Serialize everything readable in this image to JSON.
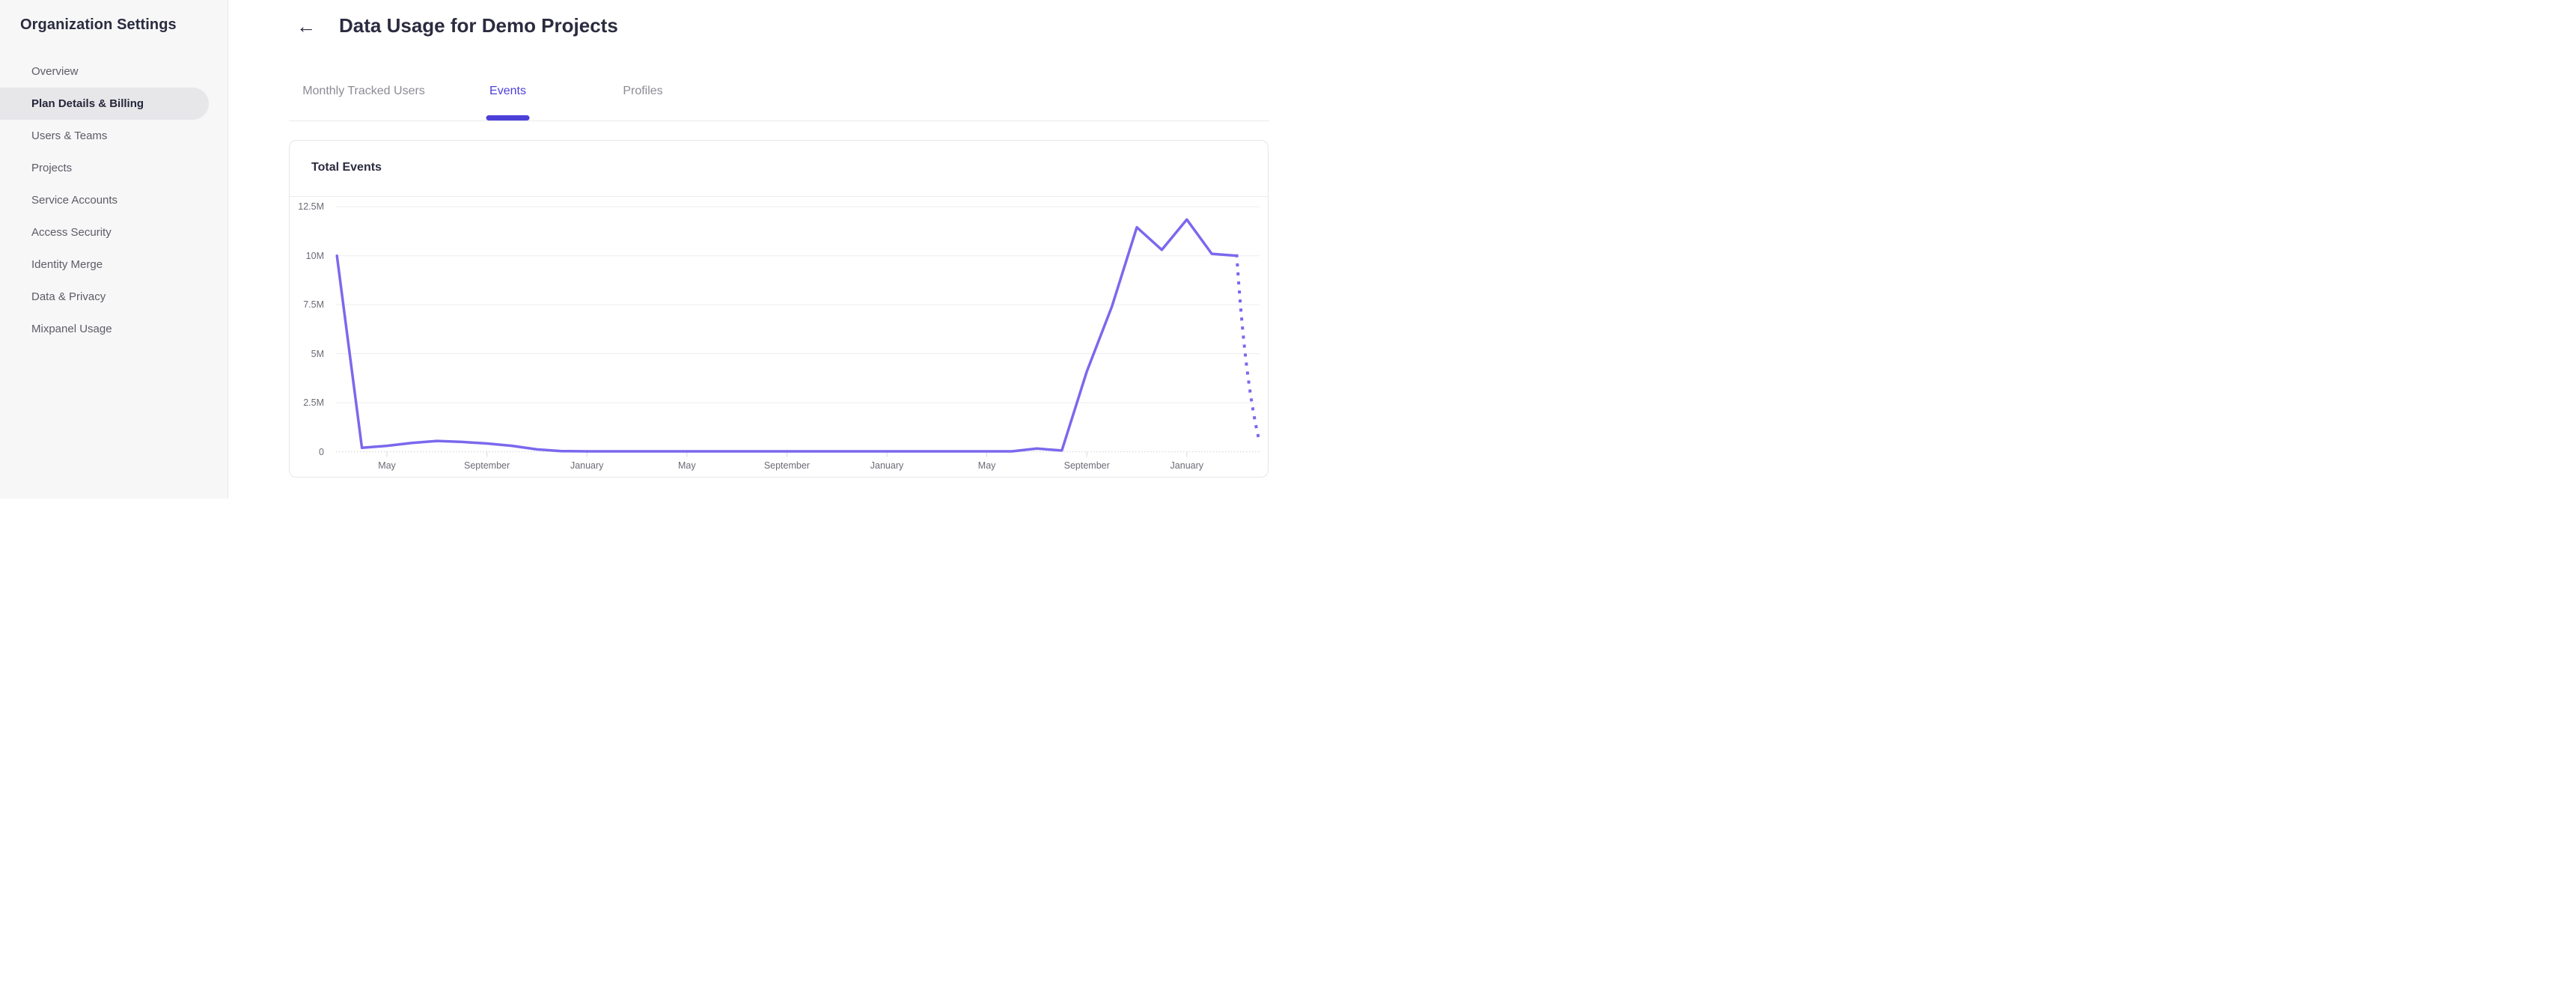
{
  "sidebar": {
    "title": "Organization Settings",
    "items": [
      {
        "label": "Overview",
        "active": false
      },
      {
        "label": "Plan Details & Billing",
        "active": true
      },
      {
        "label": "Users & Teams",
        "active": false
      },
      {
        "label": "Projects",
        "active": false
      },
      {
        "label": "Service Accounts",
        "active": false
      },
      {
        "label": "Access Security",
        "active": false
      },
      {
        "label": "Identity Merge",
        "active": false
      },
      {
        "label": "Data & Privacy",
        "active": false
      },
      {
        "label": "Mixpanel Usage",
        "active": false
      }
    ]
  },
  "header": {
    "back_icon": "←",
    "title": "Data Usage for Demo Projects"
  },
  "tabs": [
    {
      "label": "Monthly Tracked Users",
      "active": false
    },
    {
      "label": "Events",
      "active": true
    },
    {
      "label": "Profiles",
      "active": false
    }
  ],
  "card": {
    "title": "Total Events"
  },
  "chart_data": {
    "type": "line",
    "title": "Total Events",
    "unit": "events per month (millions)",
    "grid": "horizontal",
    "legend": "none",
    "ylim_millions": [
      0,
      12.5
    ],
    "y_tick_labels": [
      "12.5M",
      "10M",
      "7.5M",
      "5M",
      "2.5M",
      "0"
    ],
    "y_tick_values_millions": [
      12.5,
      10,
      7.5,
      5,
      2.5,
      0
    ],
    "x_tick_labels": [
      "May",
      "September",
      "January",
      "May",
      "September",
      "January",
      "May",
      "September",
      "January"
    ],
    "months_between_x_ticks": 4,
    "series_starts_months_before_first_tick": 2,
    "series": [
      {
        "name": "Total Events",
        "color": "#7b68ee",
        "style": "solid",
        "values_millions": [
          10,
          0.2,
          0.3,
          0.45,
          0.55,
          0.5,
          0.42,
          0.3,
          0.12,
          0.03,
          0.02,
          0.02,
          0.02,
          0.02,
          0.02,
          0.02,
          0.02,
          0.02,
          0.02,
          0.02,
          0.02,
          0.02,
          0.02,
          0.02,
          0.02,
          0.02,
          0.02,
          0.02,
          0.16,
          0.06,
          4.1,
          7.4,
          11.45,
          10.3,
          11.85,
          10.1,
          10.0
        ]
      }
    ],
    "projection": {
      "style": "dotted",
      "from_last_solid_point": true,
      "months_after_last_point": 1,
      "end_value_millions": 0.45
    }
  },
  "colors": {
    "accent": "#4c40d9",
    "line": "#7b68ee",
    "sidebar_bg": "#f7f7f8",
    "active_item_bg": "#e7e7ea",
    "text_dark": "#2b2b40",
    "text_muted": "#5c5c66",
    "tab_inactive": "#8b8b95",
    "gridline": "#ededf0",
    "zero_line": "#d9d9de",
    "axis_text": "#6b6b76",
    "card_border": "#e6e6ea"
  }
}
